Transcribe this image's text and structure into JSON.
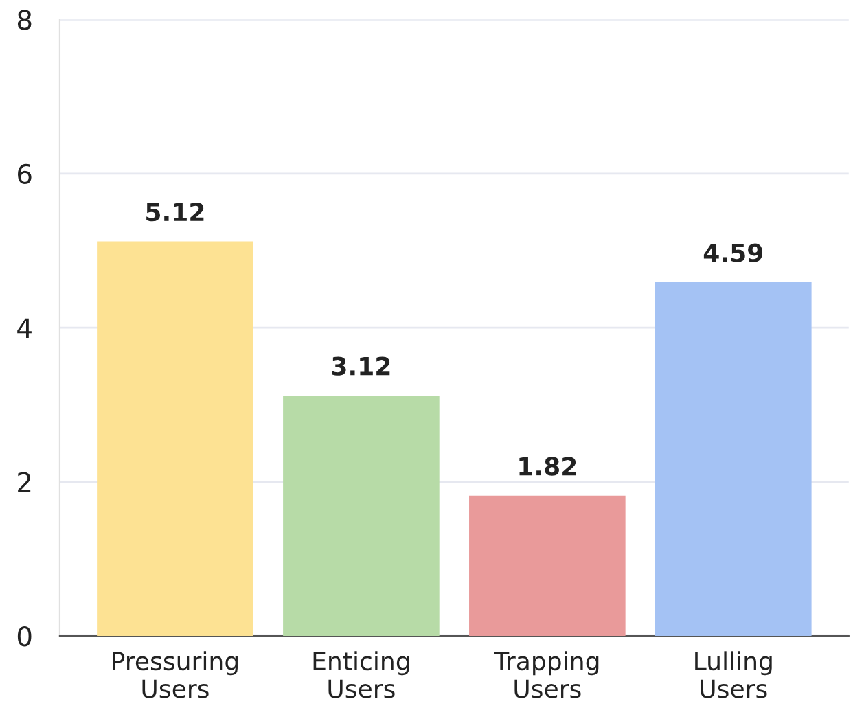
{
  "chart_data": {
    "type": "bar",
    "categories": [
      "Pressuring\nUsers",
      "Enticing\nUsers",
      "Trapping\nUsers",
      "Lulling\nUsers"
    ],
    "values": [
      5.12,
      3.12,
      1.82,
      4.59
    ],
    "colors": [
      "#fde293",
      "#b7dba7",
      "#e99a9a",
      "#a4c2f4"
    ],
    "ylim": [
      0,
      8
    ],
    "yticks": [
      0,
      2,
      4,
      6,
      8
    ],
    "grid": "y",
    "data_labels": true
  }
}
